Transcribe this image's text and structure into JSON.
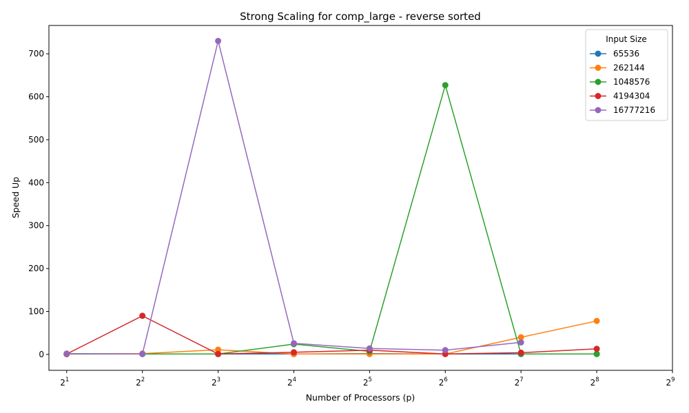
{
  "chart_data": {
    "type": "line",
    "title": "Strong Scaling for comp_large - reverse sorted",
    "xlabel": "Number of Processors (p)",
    "ylabel": "Speed Up",
    "x_scale": "log2",
    "xlim": [
      1.7,
      512
    ],
    "ylim": [
      -37,
      766
    ],
    "x": [
      2,
      4,
      8,
      16,
      32,
      64,
      128,
      256
    ],
    "x_ticks": [
      {
        "value": 2,
        "base": "2",
        "exp": "1"
      },
      {
        "value": 4,
        "base": "2",
        "exp": "2"
      },
      {
        "value": 8,
        "base": "2",
        "exp": "3"
      },
      {
        "value": 16,
        "base": "2",
        "exp": "4"
      },
      {
        "value": 32,
        "base": "2",
        "exp": "5"
      },
      {
        "value": 64,
        "base": "2",
        "exp": "6"
      },
      {
        "value": 128,
        "base": "2",
        "exp": "7"
      },
      {
        "value": 256,
        "base": "2",
        "exp": "8"
      },
      {
        "value": 512,
        "base": "2",
        "exp": "9"
      }
    ],
    "y_ticks": [
      0,
      100,
      200,
      300,
      400,
      500,
      600,
      700
    ],
    "grid": false,
    "legend": {
      "title": "Input Size",
      "position": "top-right"
    },
    "series": [
      {
        "name": "65536",
        "color": "#1f77b4",
        "values": [
          1,
          1,
          1,
          1,
          2,
          1,
          1,
          1
        ]
      },
      {
        "name": "262144",
        "color": "#ff7f0e",
        "values": [
          1,
          2,
          11,
          1,
          1,
          1,
          40,
          78
        ]
      },
      {
        "name": "1048576",
        "color": "#2ca02c",
        "values": [
          1,
          1,
          1,
          24,
          7,
          627,
          1,
          1
        ]
      },
      {
        "name": "4194304",
        "color": "#d62728",
        "values": [
          1,
          90,
          1,
          5,
          10,
          1,
          4,
          13
        ]
      },
      {
        "name": "16777216",
        "color": "#9467bd",
        "values": [
          2,
          1,
          730,
          26,
          14,
          10,
          28,
          null
        ]
      }
    ]
  }
}
